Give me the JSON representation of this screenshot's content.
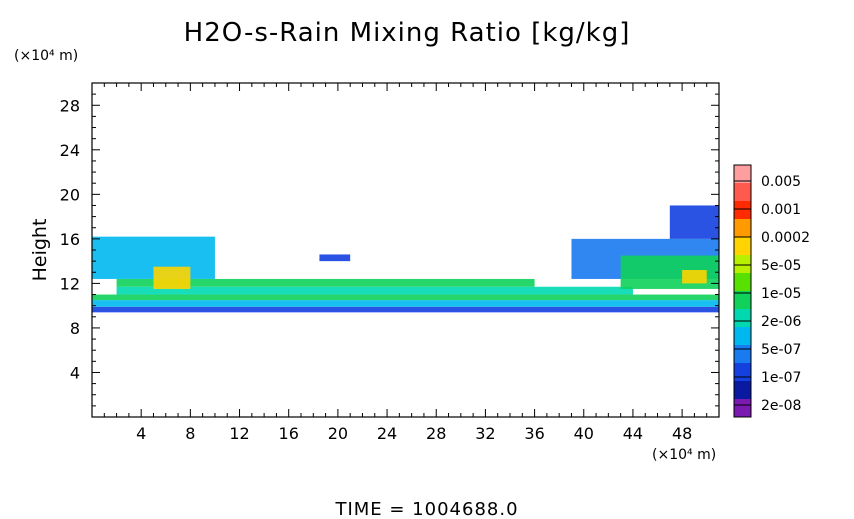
{
  "chart_data": {
    "type": "heatmap",
    "title": "H2O-s-Rain Mixing Ratio [kg/kg]",
    "ylabel": "Height",
    "x_unit": "(×10⁴ m)",
    "y_unit": "(×10⁴ m)",
    "xlim": [
      0,
      51
    ],
    "ylim": [
      0,
      30
    ],
    "x_ticks": [
      "4",
      "8",
      "12",
      "16",
      "20",
      "24",
      "28",
      "32",
      "36",
      "40",
      "44",
      "48"
    ],
    "x_tick_values": [
      4,
      8,
      12,
      16,
      20,
      24,
      28,
      32,
      36,
      40,
      44,
      48
    ],
    "y_ticks": [
      "4",
      "8",
      "12",
      "16",
      "20",
      "24",
      "28"
    ],
    "y_tick_values": [
      4,
      8,
      12,
      16,
      20,
      24,
      28
    ],
    "colorbar": {
      "labels": [
        "0.005",
        "0.001",
        "0.0002",
        "5e-05",
        "1e-05",
        "2e-06",
        "5e-07",
        "1e-07",
        "2e-08"
      ],
      "colors": [
        "#ff9e9e",
        "#ff5a4d",
        "#ff2a00",
        "#ff9a00",
        "#ffd400",
        "#b8f000",
        "#58e000",
        "#10d25a",
        "#00d8b0",
        "#00b8f0",
        "#1a7af0",
        "#1440e0",
        "#0a1aa0",
        "#7a1ab0"
      ]
    },
    "time_label": "TIME = 1004688.0",
    "regions": [
      {
        "x": [
          0,
          51
        ],
        "y": [
          9.4,
          9.9
        ],
        "level": 2
      },
      {
        "x": [
          0,
          51
        ],
        "y": [
          9.9,
          10.5
        ],
        "level": 4
      },
      {
        "x": [
          0,
          51
        ],
        "y": [
          10.5,
          11.0
        ],
        "level": 6
      },
      {
        "x": [
          2,
          44
        ],
        "y": [
          11.0,
          11.7
        ],
        "level": 5
      },
      {
        "x": [
          2,
          36
        ],
        "y": [
          11.7,
          12.4
        ],
        "level": 6
      },
      {
        "x": [
          0,
          10
        ],
        "y": [
          12.4,
          16.2
        ],
        "level": 4
      },
      {
        "x": [
          5,
          8
        ],
        "y": [
          11.5,
          13.5
        ],
        "level": 9
      },
      {
        "x": [
          18.5,
          21
        ],
        "y": [
          14.0,
          14.6
        ],
        "level": 2
      },
      {
        "x": [
          39,
          51
        ],
        "y": [
          12.4,
          16.0
        ],
        "level": 3
      },
      {
        "x": [
          43,
          51
        ],
        "y": [
          11.5,
          14.5
        ],
        "level": 6
      },
      {
        "x": [
          48,
          50
        ],
        "y": [
          12.0,
          13.2
        ],
        "level": 9
      },
      {
        "x": [
          47,
          51
        ],
        "y": [
          16.0,
          19.0
        ],
        "level": 2
      }
    ]
  }
}
